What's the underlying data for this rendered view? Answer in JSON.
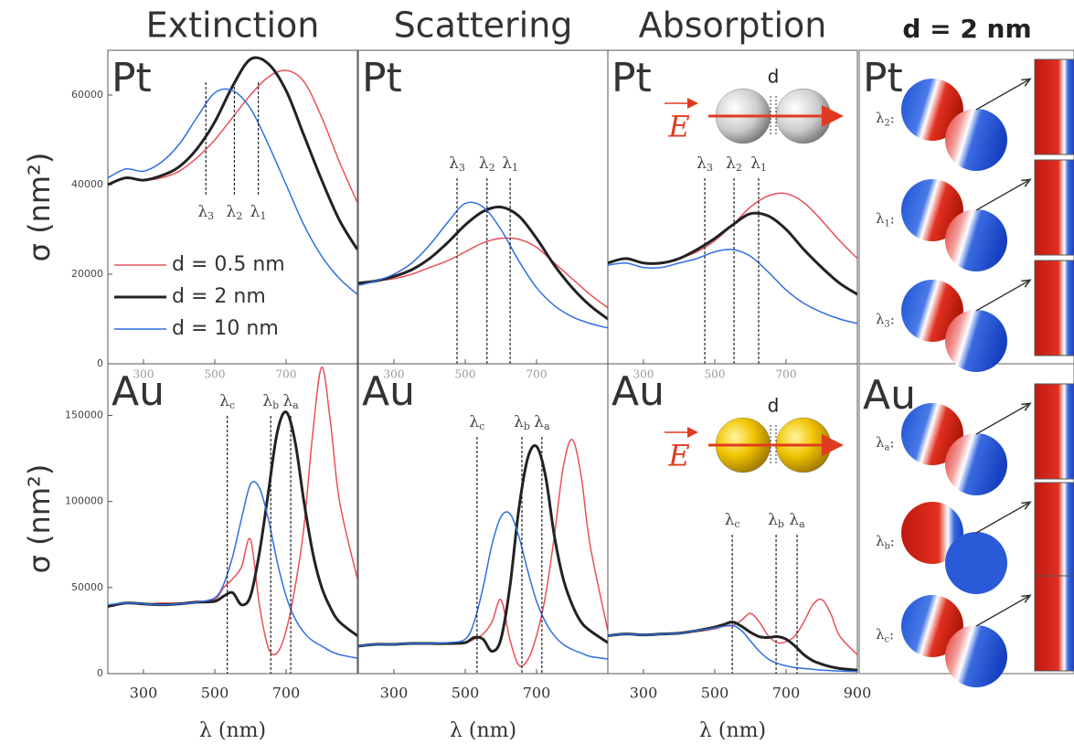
{
  "chart_data": [
    {
      "type": "line",
      "title": "Extinction",
      "label": "Pt",
      "ylabel": "σ (nm²)",
      "x": [
        200,
        250,
        300,
        350,
        400,
        450,
        500,
        550,
        600,
        650,
        700,
        750,
        800,
        850,
        900
      ],
      "series": [
        {
          "name": "d = 0.5 nm",
          "color": "#e8505b",
          "values": [
            40000,
            41500,
            41000,
            41500,
            43000,
            46000,
            50000,
            55000,
            60000,
            64000,
            65500,
            63000,
            55000,
            45000,
            36000
          ]
        },
        {
          "name": "d = 2 nm",
          "color": "#222222",
          "values": [
            40000,
            41500,
            41000,
            42000,
            44000,
            48000,
            54000,
            62000,
            68000,
            67000,
            61000,
            51000,
            41000,
            32000,
            25500
          ]
        },
        {
          "name": "d = 10 nm",
          "color": "#2f6fe0",
          "values": [
            41500,
            43500,
            43000,
            45000,
            49000,
            55000,
            60500,
            61000,
            57000,
            49000,
            40000,
            31000,
            24000,
            19000,
            15500
          ]
        }
      ],
      "xlim": [
        200,
        900
      ],
      "ylim": [
        0,
        70000
      ],
      "xticks": [
        300,
        500,
        700
      ],
      "yticks": [
        0,
        20000,
        40000,
        60000
      ],
      "markers": [
        {
          "x": 475,
          "label": "λ",
          "sub": "3"
        },
        {
          "x": 555,
          "label": "λ",
          "sub": "2"
        },
        {
          "x": 622,
          "label": "λ",
          "sub": "1"
        }
      ]
    },
    {
      "type": "line",
      "title": "Scattering",
      "label": "Pt",
      "x": [
        200,
        250,
        300,
        350,
        400,
        450,
        500,
        550,
        600,
        650,
        700,
        750,
        800,
        850,
        900
      ],
      "series": [
        {
          "color": "#e8505b",
          "values": [
            18000,
            18500,
            19000,
            20000,
            21500,
            23000,
            25000,
            27000,
            28000,
            27800,
            26000,
            22500,
            19000,
            15500,
            12500
          ]
        },
        {
          "color": "#222222",
          "values": [
            18000,
            18500,
            19500,
            21000,
            23500,
            27000,
            31000,
            34000,
            35000,
            33000,
            28000,
            22000,
            17000,
            13000,
            10000
          ]
        },
        {
          "color": "#2f6fe0",
          "values": [
            17500,
            18500,
            20000,
            22500,
            26500,
            31500,
            35800,
            35000,
            30000,
            23000,
            17000,
            13000,
            10500,
            9000,
            8000
          ]
        }
      ],
      "xlim": [
        200,
        900
      ],
      "ylim": [
        0,
        70000
      ],
      "xticks": [
        300,
        500,
        700
      ],
      "markers": [
        {
          "x": 477,
          "label": "λ",
          "sub": "3"
        },
        {
          "x": 561,
          "label": "λ",
          "sub": "2"
        },
        {
          "x": 626,
          "label": "λ",
          "sub": "1"
        }
      ]
    },
    {
      "type": "line",
      "title": "Absorption",
      "label": "Pt",
      "diagram": {
        "field": "E",
        "gap": "d"
      },
      "x": [
        200,
        250,
        300,
        350,
        400,
        450,
        500,
        550,
        600,
        650,
        700,
        750,
        800,
        850,
        900
      ],
      "series": [
        {
          "color": "#e8505b",
          "values": [
            22500,
            23500,
            22500,
            22500,
            23500,
            25000,
            27500,
            31000,
            35000,
            37500,
            38000,
            36000,
            32000,
            27500,
            23500
          ]
        },
        {
          "color": "#222222",
          "values": [
            22500,
            23500,
            22500,
            22500,
            23500,
            25500,
            28000,
            31000,
            33500,
            33000,
            30000,
            25500,
            21500,
            18000,
            15500
          ]
        },
        {
          "color": "#2f6fe0",
          "values": [
            22000,
            22500,
            21500,
            21500,
            22500,
            23500,
            25000,
            25500,
            24000,
            20500,
            16500,
            13500,
            11500,
            10000,
            9000
          ]
        }
      ],
      "xlim": [
        200,
        900
      ],
      "ylim": [
        0,
        70000
      ],
      "xticks": [
        300,
        500,
        700
      ],
      "markers": [
        {
          "x": 472,
          "label": "λ",
          "sub": "3"
        },
        {
          "x": 554,
          "label": "λ",
          "sub": "2"
        },
        {
          "x": 623,
          "label": "λ",
          "sub": "1"
        }
      ]
    },
    {
      "type": "line",
      "label": "Au",
      "ylabel": "σ (nm²)",
      "xlabel": "λ (nm)",
      "x": [
        200,
        250,
        300,
        350,
        400,
        450,
        500,
        525,
        550,
        575,
        600,
        625,
        650,
        675,
        700,
        725,
        750,
        775,
        800,
        825,
        850,
        900
      ],
      "series": [
        {
          "color": "#e8505b",
          "values": [
            39000,
            41000,
            40500,
            41000,
            41000,
            42000,
            43000,
            50000,
            55000,
            62000,
            78000,
            40000,
            15000,
            12000,
            25000,
            50000,
            85000,
            140000,
            178000,
            145000,
            100000,
            55000
          ]
        },
        {
          "color": "#222222",
          "values": [
            39000,
            41000,
            40500,
            40000,
            40500,
            41500,
            42000,
            45000,
            47000,
            40000,
            45000,
            70000,
            105000,
            140000,
            152000,
            135000,
            100000,
            70000,
            50000,
            38000,
            30000,
            22000
          ]
        },
        {
          "color": "#2f6fe0",
          "values": [
            40000,
            41000,
            40500,
            40000,
            40500,
            41500,
            44000,
            52000,
            68000,
            90000,
            110000,
            108000,
            90000,
            65000,
            45000,
            32000,
            24000,
            19000,
            16000,
            13000,
            11000,
            9000
          ]
        }
      ],
      "xlim": [
        200,
        900
      ],
      "ylim": [
        0,
        180000
      ],
      "xticks": [
        300,
        500,
        700
      ],
      "yticks": [
        0,
        50000,
        100000,
        150000
      ],
      "markers": [
        {
          "x": 535,
          "label": "λ",
          "sub": "c"
        },
        {
          "x": 657,
          "label": "λ",
          "sub": "b"
        },
        {
          "x": 713,
          "label": "λ",
          "sub": "a"
        }
      ]
    },
    {
      "type": "line",
      "label": "Au",
      "xlabel": "λ (nm)",
      "x": [
        200,
        250,
        300,
        350,
        400,
        450,
        500,
        525,
        550,
        575,
        600,
        625,
        650,
        675,
        700,
        725,
        750,
        775,
        800,
        825,
        850,
        900
      ],
      "series": [
        {
          "color": "#e8505b",
          "values": [
            16000,
            17000,
            17000,
            17500,
            17500,
            17500,
            18000,
            20000,
            23000,
            30000,
            43000,
            20000,
            5000,
            8000,
            22000,
            45000,
            80000,
            120000,
            136000,
            115000,
            75000,
            25000
          ]
        },
        {
          "color": "#222222",
          "values": [
            16000,
            17000,
            17000,
            17500,
            17500,
            17500,
            18000,
            21000,
            20000,
            13000,
            20000,
            50000,
            95000,
            125000,
            132000,
            115000,
            80000,
            55000,
            40000,
            30000,
            25000,
            18000
          ]
        },
        {
          "color": "#2f6fe0",
          "values": [
            16000,
            17000,
            17000,
            17500,
            17500,
            18000,
            20000,
            30000,
            50000,
            75000,
            91000,
            93000,
            80000,
            60000,
            42000,
            30000,
            22000,
            17000,
            14000,
            12000,
            10000,
            8500
          ]
        }
      ],
      "xlim": [
        200,
        900
      ],
      "ylim": [
        0,
        180000
      ],
      "xticks": [
        300,
        500,
        700
      ],
      "markers": [
        {
          "x": 533,
          "label": "λ",
          "sub": "c"
        },
        {
          "x": 659,
          "label": "λ",
          "sub": "b"
        },
        {
          "x": 715,
          "label": "λ",
          "sub": "a"
        }
      ]
    },
    {
      "type": "line",
      "label": "Au",
      "xlabel": "λ (nm)",
      "diagram": {
        "field": "E",
        "gap": "d"
      },
      "x": [
        200,
        250,
        300,
        350,
        400,
        450,
        500,
        525,
        550,
        575,
        600,
        625,
        650,
        675,
        700,
        725,
        750,
        775,
        800,
        825,
        850,
        900
      ],
      "series": [
        {
          "color": "#e8505b",
          "values": [
            22000,
            23000,
            22500,
            23000,
            23500,
            24500,
            26000,
            27500,
            28000,
            31000,
            35000,
            30000,
            22000,
            18000,
            18500,
            22000,
            30000,
            40000,
            43000,
            35000,
            22000,
            11000
          ]
        },
        {
          "color": "#222222",
          "values": [
            22000,
            23000,
            22500,
            23000,
            23500,
            25000,
            27000,
            28500,
            30000,
            27500,
            24000,
            21500,
            21000,
            21500,
            20000,
            16000,
            11000,
            7500,
            5500,
            4000,
            3000,
            2000
          ]
        },
        {
          "color": "#2f6fe0",
          "values": [
            22000,
            23000,
            22500,
            23000,
            23500,
            25000,
            26500,
            27500,
            28000,
            25000,
            19000,
            13000,
            8500,
            6000,
            4500,
            3500,
            3000,
            2500,
            2000,
            1800,
            1500,
            1200
          ]
        }
      ],
      "xlim": [
        200,
        900
      ],
      "ylim": [
        0,
        180000
      ],
      "xticks": [
        300,
        500,
        700,
        900
      ],
      "markers": [
        {
          "x": 549,
          "label": "λ",
          "sub": "c"
        },
        {
          "x": 672,
          "label": "λ",
          "sub": "b"
        },
        {
          "x": 731,
          "label": "λ",
          "sub": "a"
        }
      ]
    }
  ],
  "field_maps": {
    "title": "d = 2 nm",
    "panels": [
      {
        "label": "Pt",
        "rows": [
          {
            "label": "λ",
            "sub": "2",
            "suffix": ":"
          },
          {
            "label": "λ",
            "sub": "1",
            "suffix": ":"
          },
          {
            "label": "λ",
            "sub": "3",
            "suffix": ":"
          }
        ]
      },
      {
        "label": "Au",
        "rows": [
          {
            "label": "λ",
            "sub": "a",
            "suffix": ":"
          },
          {
            "label": "λ",
            "sub": "b",
            "suffix": ":"
          },
          {
            "label": "λ",
            "sub": "c",
            "suffix": ":"
          }
        ]
      }
    ]
  }
}
